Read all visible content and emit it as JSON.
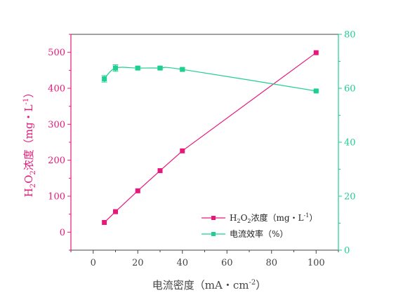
{
  "chart_data": {
    "type": "line",
    "xlabel": {
      "main": "电流密度（mA・cm",
      "sup": "-2",
      "end": "）"
    },
    "ylabel_left": {
      "h": "H",
      "sub1": "2",
      "o": "O",
      "sub2": "2",
      "rest": "浓度（mg・L",
      "sup": "-1",
      "end": "）"
    },
    "xlim": [
      -10,
      110
    ],
    "ylim_left": [
      -50,
      550
    ],
    "ylim_right": [
      0,
      80
    ],
    "x_ticks": [
      "0",
      "20",
      "40",
      "60",
      "80",
      "100"
    ],
    "y_left_ticks": [
      "0",
      "100",
      "200",
      "300",
      "400",
      "500"
    ],
    "y_right_ticks": [
      "0",
      "20",
      "40",
      "60",
      "80"
    ],
    "series": [
      {
        "name": "H2O2浓度（mg・L-1）",
        "legend": {
          "h": "H",
          "sub1": "2",
          "o": "O",
          "sub2": "2",
          "rest": "浓度（mg・L",
          "sup": "-1",
          "end": "）"
        },
        "axis": "left",
        "color": "#e6197a",
        "marker": "square",
        "x": [
          5,
          10,
          20,
          30,
          40,
          100
        ],
        "y": [
          27,
          57,
          115,
          171,
          226,
          499
        ],
        "err": [
          0,
          0,
          0,
          0,
          0,
          0
        ]
      },
      {
        "name": "电流效率（%）",
        "legend_text": "电流效率（%）",
        "axis": "right",
        "color": "#1fcf8f",
        "marker": "square",
        "x": [
          5,
          10,
          20,
          30,
          40,
          100
        ],
        "y": [
          63.5,
          67.5,
          67.5,
          67.5,
          67.0,
          59.0
        ],
        "err": [
          1.2,
          1.2,
          0.5,
          0.5,
          0.5,
          0.3
        ]
      }
    ],
    "colors": {
      "left_axis": "#e6197a",
      "right_axis": "#1fcf8f",
      "bottom_axis": "#444444"
    },
    "grid": false,
    "legend_position": "bottom-right"
  }
}
